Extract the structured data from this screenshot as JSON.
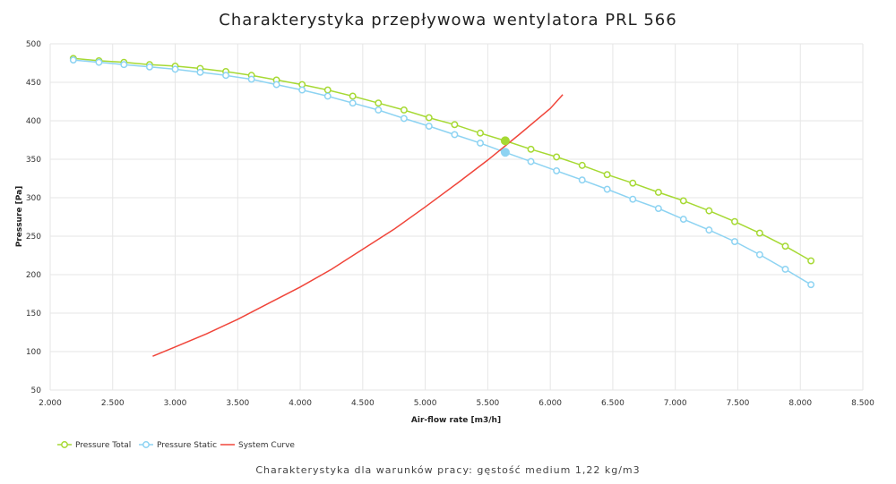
{
  "chart_data": {
    "type": "line",
    "title": "Charakterystyka przepływowa wentylatora PRL 566",
    "subtitle": "Charakterystyka dla warunków pracy: gęstość medium 1,22 kg/m3",
    "xlabel": "Air-flow rate [m3/h]",
    "ylabel": "Pressure [Pa]",
    "xlim": [
      2000,
      8500
    ],
    "ylim": [
      50,
      500
    ],
    "xticks": [
      2000,
      2500,
      3000,
      3500,
      4000,
      4500,
      5000,
      5500,
      6000,
      6500,
      7000,
      7500,
      8000,
      8500
    ],
    "xtick_labels": [
      "2.000",
      "2.500",
      "3.000",
      "3.500",
      "4.000",
      "4.500",
      "5.000",
      "5.500",
      "6.000",
      "6.500",
      "7.000",
      "7.500",
      "8.000",
      "8.500"
    ],
    "yticks": [
      50,
      100,
      150,
      200,
      250,
      300,
      350,
      400,
      450,
      500
    ],
    "ytick_labels": [
      "50",
      "100",
      "150",
      "200",
      "250",
      "300",
      "350",
      "400",
      "450",
      "500"
    ],
    "grid": true,
    "legend_position": "bottom-left",
    "series": [
      {
        "name": "Pressure Total",
        "color": "#a6d933",
        "marker": "hollow-circle",
        "x": [
          2185,
          2390,
          2590,
          2795,
          3000,
          3200,
          3405,
          3610,
          3810,
          4015,
          4220,
          4420,
          4625,
          4830,
          5030,
          5235,
          5440,
          5640,
          5845,
          6050,
          6255,
          6455,
          6660,
          6865,
          7065,
          7270,
          7475,
          7675,
          7880,
          8085
        ],
        "y": [
          481,
          478,
          476,
          473,
          471,
          468,
          464,
          459,
          453,
          447,
          440,
          432,
          423,
          414,
          404,
          395,
          384,
          374,
          363,
          353,
          342,
          330,
          319,
          307,
          296,
          283,
          269,
          254,
          237,
          218
        ]
      },
      {
        "name": "Pressure Static",
        "color": "#8dd3f2",
        "marker": "hollow-circle",
        "x": [
          2185,
          2390,
          2590,
          2795,
          3000,
          3200,
          3405,
          3610,
          3810,
          4015,
          4220,
          4420,
          4625,
          4830,
          5030,
          5235,
          5440,
          5640,
          5845,
          6050,
          6255,
          6455,
          6660,
          6865,
          7065,
          7270,
          7475,
          7675,
          7880,
          8085
        ],
        "y": [
          479,
          476,
          473,
          470,
          467,
          463,
          459,
          454,
          447,
          440,
          432,
          423,
          414,
          403,
          393,
          382,
          371,
          359,
          347,
          335,
          323,
          311,
          298,
          286,
          272,
          258,
          243,
          226,
          207,
          187
        ]
      },
      {
        "name": "System Curve",
        "color": "#f0453a",
        "marker": "none",
        "x": [
          2820,
          3000,
          3250,
          3500,
          3750,
          4000,
          4250,
          4500,
          4750,
          5000,
          5250,
          5500,
          5750,
          6000,
          6100
        ],
        "y": [
          94,
          106,
          123,
          142,
          163,
          184,
          207,
          233,
          259,
          288,
          318,
          349,
          382,
          416,
          434
        ]
      }
    ],
    "operating_points": [
      {
        "series": "Pressure Total",
        "x": 5640,
        "y": 374,
        "color": "#a6d933"
      },
      {
        "series": "Pressure Static",
        "x": 5640,
        "y": 359,
        "color": "#8dd3f2"
      }
    ]
  }
}
